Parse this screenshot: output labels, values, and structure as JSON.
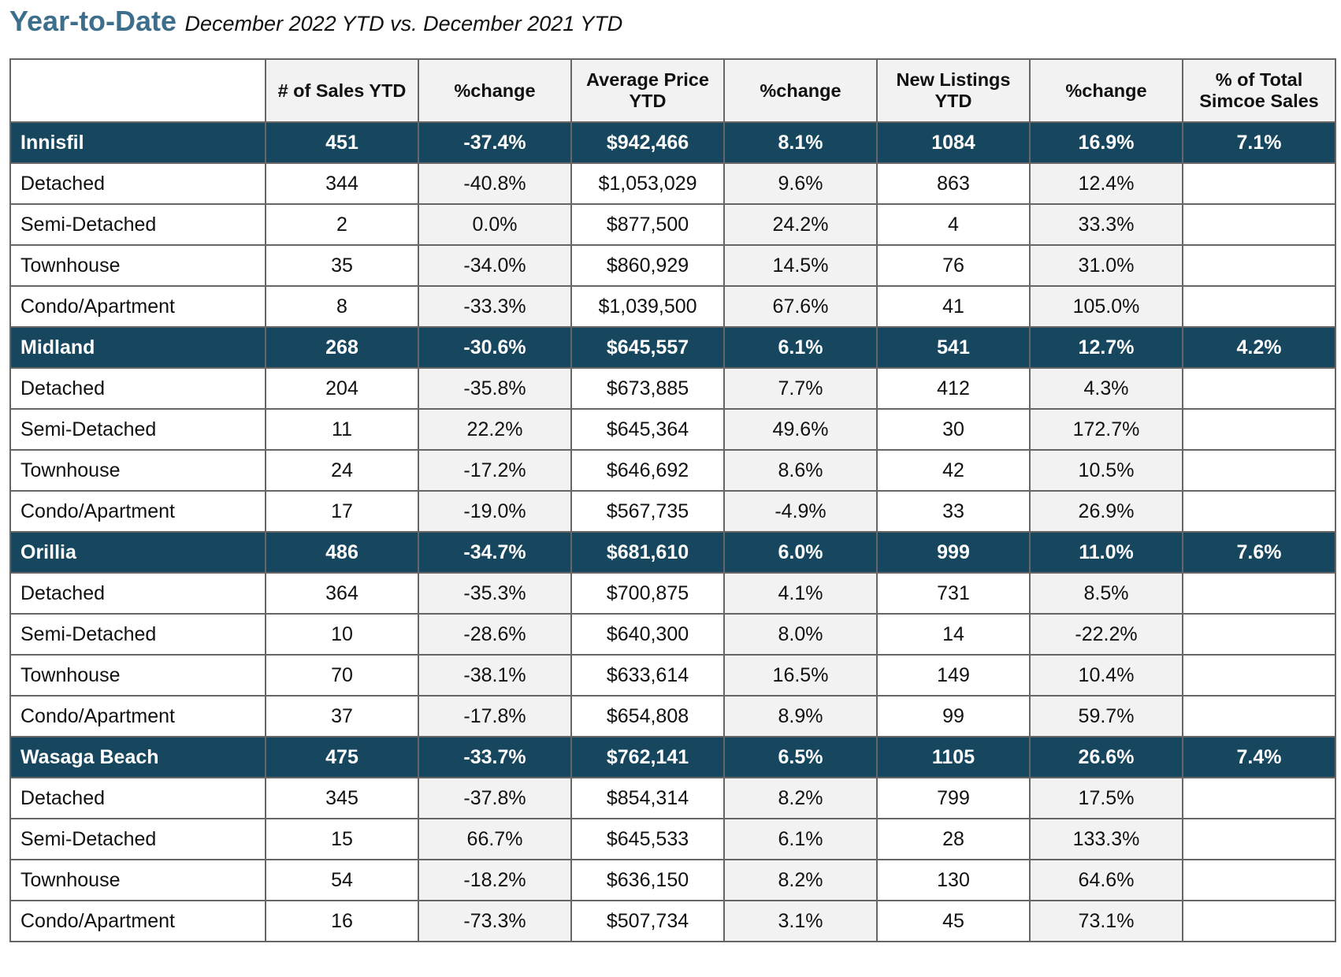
{
  "page": {
    "title": "Year-to-Date",
    "subtitle": "December 2022 YTD vs. December 2021 YTD"
  },
  "colors": {
    "title": "#3d6f8c",
    "group_row_background": "#17475f",
    "group_row_text": "#ffffff",
    "shaded_column": "#f2f2f2",
    "border": "#666666"
  },
  "table": {
    "columns": [
      "",
      "# of Sales YTD",
      "%change",
      "Average Price YTD",
      "%change",
      "New Listings YTD",
      "%change",
      "% of Total Simcoe Sales"
    ],
    "groups": [
      {
        "name": "Innisfil",
        "values": [
          "451",
          "-37.4%",
          "$942,466",
          "8.1%",
          "1084",
          "16.9%",
          "7.1%"
        ],
        "rows": [
          {
            "type": "Detached",
            "values": [
              "344",
              "-40.8%",
              "$1,053,029",
              "9.6%",
              "863",
              "12.4%",
              ""
            ]
          },
          {
            "type": "Semi-Detached",
            "values": [
              "2",
              "0.0%",
              "$877,500",
              "24.2%",
              "4",
              "33.3%",
              ""
            ]
          },
          {
            "type": "Townhouse",
            "values": [
              "35",
              "-34.0%",
              "$860,929",
              "14.5%",
              "76",
              "31.0%",
              ""
            ]
          },
          {
            "type": "Condo/Apartment",
            "values": [
              "8",
              "-33.3%",
              "$1,039,500",
              "67.6%",
              "41",
              "105.0%",
              ""
            ]
          }
        ]
      },
      {
        "name": "Midland",
        "values": [
          "268",
          "-30.6%",
          "$645,557",
          "6.1%",
          "541",
          "12.7%",
          "4.2%"
        ],
        "rows": [
          {
            "type": "Detached",
            "values": [
              "204",
              "-35.8%",
              "$673,885",
              "7.7%",
              "412",
              "4.3%",
              ""
            ]
          },
          {
            "type": "Semi-Detached",
            "values": [
              "11",
              "22.2%",
              "$645,364",
              "49.6%",
              "30",
              "172.7%",
              ""
            ]
          },
          {
            "type": "Townhouse",
            "values": [
              "24",
              "-17.2%",
              "$646,692",
              "8.6%",
              "42",
              "10.5%",
              ""
            ]
          },
          {
            "type": "Condo/Apartment",
            "values": [
              "17",
              "-19.0%",
              "$567,735",
              "-4.9%",
              "33",
              "26.9%",
              ""
            ]
          }
        ]
      },
      {
        "name": "Orillia",
        "values": [
          "486",
          "-34.7%",
          "$681,610",
          "6.0%",
          "999",
          "11.0%",
          "7.6%"
        ],
        "rows": [
          {
            "type": "Detached",
            "values": [
              "364",
              "-35.3%",
              "$700,875",
              "4.1%",
              "731",
              "8.5%",
              ""
            ]
          },
          {
            "type": "Semi-Detached",
            "values": [
              "10",
              "-28.6%",
              "$640,300",
              "8.0%",
              "14",
              "-22.2%",
              ""
            ]
          },
          {
            "type": "Townhouse",
            "values": [
              "70",
              "-38.1%",
              "$633,614",
              "16.5%",
              "149",
              "10.4%",
              ""
            ]
          },
          {
            "type": "Condo/Apartment",
            "values": [
              "37",
              "-17.8%",
              "$654,808",
              "8.9%",
              "99",
              "59.7%",
              ""
            ]
          }
        ]
      },
      {
        "name": "Wasaga Beach",
        "values": [
          "475",
          "-33.7%",
          "$762,141",
          "6.5%",
          "1105",
          "26.6%",
          "7.4%"
        ],
        "rows": [
          {
            "type": "Detached",
            "values": [
              "345",
              "-37.8%",
              "$854,314",
              "8.2%",
              "799",
              "17.5%",
              ""
            ]
          },
          {
            "type": "Semi-Detached",
            "values": [
              "15",
              "66.7%",
              "$645,533",
              "6.1%",
              "28",
              "133.3%",
              ""
            ]
          },
          {
            "type": "Townhouse",
            "values": [
              "54",
              "-18.2%",
              "$636,150",
              "8.2%",
              "130",
              "64.6%",
              ""
            ]
          },
          {
            "type": "Condo/Apartment",
            "values": [
              "16",
              "-73.3%",
              "$507,734",
              "3.1%",
              "45",
              "73.1%",
              ""
            ]
          }
        ]
      }
    ]
  }
}
